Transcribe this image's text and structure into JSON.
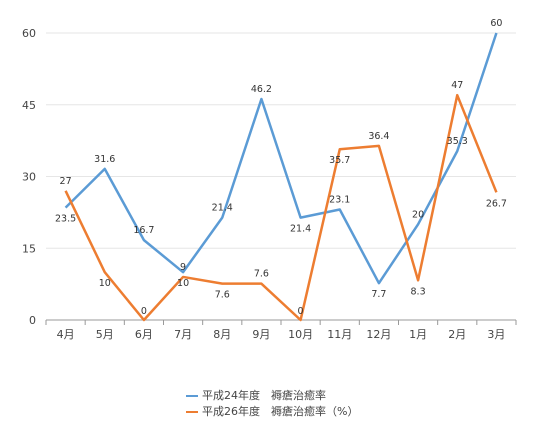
{
  "chart_data": {
    "type": "line",
    "categories": [
      "4月",
      "5月",
      "6月",
      "7月",
      "8月",
      "9月",
      "10月",
      "11月",
      "12月",
      "1月",
      "2月",
      "3月"
    ],
    "ylim": [
      0,
      60
    ],
    "yticks": [
      "0",
      "15",
      "30",
      "45",
      "60"
    ],
    "grid": true,
    "legend_position": "bottom",
    "series": [
      {
        "name": "平成24年度　褥瘡治癒率",
        "color": "#5b9bd5",
        "values": [
          23.5,
          31.6,
          16.7,
          10,
          21.4,
          46.2,
          21.4,
          23.1,
          7.7,
          20,
          35.3,
          60
        ],
        "labels": [
          "23.5",
          "31.6",
          "16.7",
          "10",
          "21.4",
          "46.2",
          "21.4",
          "23.1",
          "7.7",
          "20",
          "35.3",
          "60"
        ]
      },
      {
        "name": "平成26年度　褥瘡治癒率（%）",
        "color": "#ed7d31",
        "values": [
          27,
          10,
          0,
          9,
          7.6,
          7.6,
          0,
          35.7,
          36.4,
          8.3,
          47,
          26.7
        ],
        "labels": [
          "27",
          "10",
          "0",
          "9",
          "7.6",
          "7.6",
          "0",
          "35.7",
          "36.4",
          "8.3",
          "47",
          "26.7"
        ]
      }
    ]
  }
}
